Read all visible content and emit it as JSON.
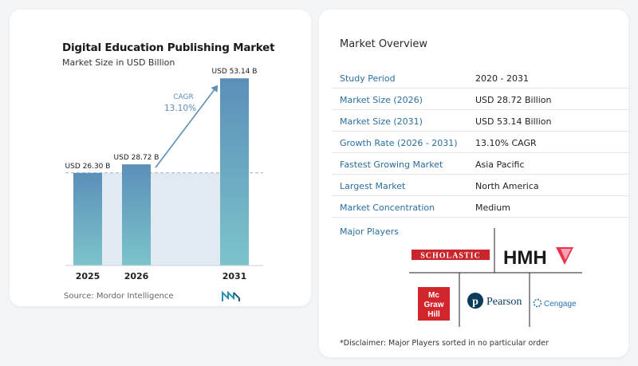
{
  "chart_data": {
    "type": "bar",
    "title": "Digital Education Publishing Market",
    "subtitle": "Market Size in USD Billion",
    "categories": [
      "2025",
      "2026",
      "2031"
    ],
    "values": [
      26.3,
      28.72,
      53.14
    ],
    "value_labels": [
      "USD 26.30 B",
      "USD 28.72 B",
      "USD 53.14 B"
    ],
    "cagr_label": "CAGR",
    "cagr_value": "13.10%",
    "ylim": [
      0,
      55
    ],
    "colors": {
      "bar_top": "#5b8fb9",
      "bar_bottom": "#7cc4cb",
      "shade": "#e2eaf1",
      "arrow": "#5b8fb9",
      "cagr_text": "#5b8fb9"
    }
  },
  "source": "Source: Mordor Intelligence",
  "overview": {
    "title": "Market Overview",
    "rows": [
      {
        "label": "Study Period",
        "value": "2020 - 2031"
      },
      {
        "label": "Market Size (2026)",
        "value": "USD 28.72 Billion"
      },
      {
        "label": "Market Size (2031)",
        "value": "USD 53.14 Billion"
      },
      {
        "label": "Growth Rate (2026 - 2031)",
        "value": "13.10% CAGR"
      },
      {
        "label": "Fastest Growing Market",
        "value": "Asia Pacific"
      },
      {
        "label": "Largest Market",
        "value": "North America"
      },
      {
        "label": "Market Concentration",
        "value": "Medium"
      }
    ],
    "players_title": "Major Players",
    "players": [
      {
        "name": "SCHOLASTIC",
        "icon": "scholastic-logo"
      },
      {
        "name": "HMH",
        "icon": "hmh-logo"
      },
      {
        "name": "McGraw Hill",
        "icon": "mcgraw-hill-logo",
        "lines": [
          "Mc",
          "Graw",
          "Hill"
        ]
      },
      {
        "name": "Pearson",
        "icon": "pearson-logo"
      },
      {
        "name": "Cengage",
        "icon": "cengage-logo"
      }
    ],
    "disclaimer": "*Disclaimer: Major Players sorted in no particular order"
  }
}
